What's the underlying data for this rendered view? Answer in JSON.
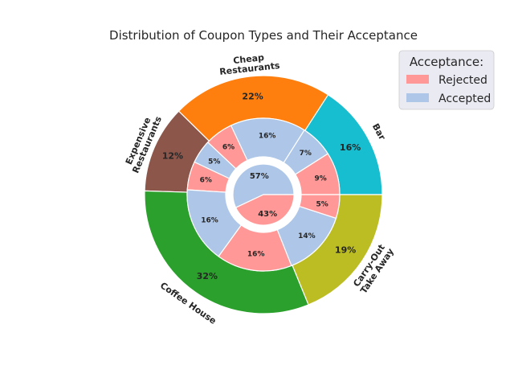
{
  "chart_data": {
    "type": "pie",
    "subtype": "nested-donut",
    "title": "Distribution of Coupon Types and Their Acceptance",
    "outer_ring": {
      "categories": [
        "Bar",
        "Cheap\nRestaurants",
        "Expensive\nRestaurants",
        "Coffee House",
        "Carry-Out\nTake Away"
      ],
      "values": [
        16,
        22,
        12,
        32,
        19
      ],
      "labels": [
        "16%",
        "22%",
        "12%",
        "32%",
        "19%"
      ],
      "colors": [
        "#17becf",
        "#ff7f0e",
        "#8c564b",
        "#2ca02c",
        "#bcbd22"
      ]
    },
    "middle_ring": {
      "categories": [
        "Bar Rejected",
        "Bar Accepted",
        "Cheap Restaurants Accepted",
        "Cheap Restaurants Rejected",
        "Expensive Restaurants Accepted",
        "Expensive Restaurants Rejected",
        "Coffee House Accepted",
        "Coffee House Rejected",
        "Carry-Out Take Away Accepted",
        "Carry-Out Take Away Rejected"
      ],
      "values": [
        9,
        7,
        16,
        6,
        5,
        6,
        16,
        16,
        14,
        5
      ],
      "labels": [
        "9%",
        "7%",
        "16%",
        "6%",
        "5%",
        "6%",
        "16%",
        "16%",
        "14%",
        "5%"
      ],
      "acceptance": [
        "Rejected",
        "Accepted",
        "Accepted",
        "Rejected",
        "Accepted",
        "Rejected",
        "Accepted",
        "Rejected",
        "Accepted",
        "Rejected"
      ]
    },
    "inner_ring": {
      "categories": [
        "Accepted",
        "Rejected"
      ],
      "values": [
        57,
        43
      ],
      "labels": [
        "57%",
        "43%"
      ]
    },
    "legend": {
      "title": "Acceptance:",
      "position": "top-right",
      "entries": [
        {
          "label": "Rejected",
          "color": "#ff9896"
        },
        {
          "label": "Accepted",
          "color": "#aec7e8"
        }
      ]
    },
    "acceptance_colors": {
      "Rejected": "#ff9896",
      "Accepted": "#aec7e8"
    }
  }
}
